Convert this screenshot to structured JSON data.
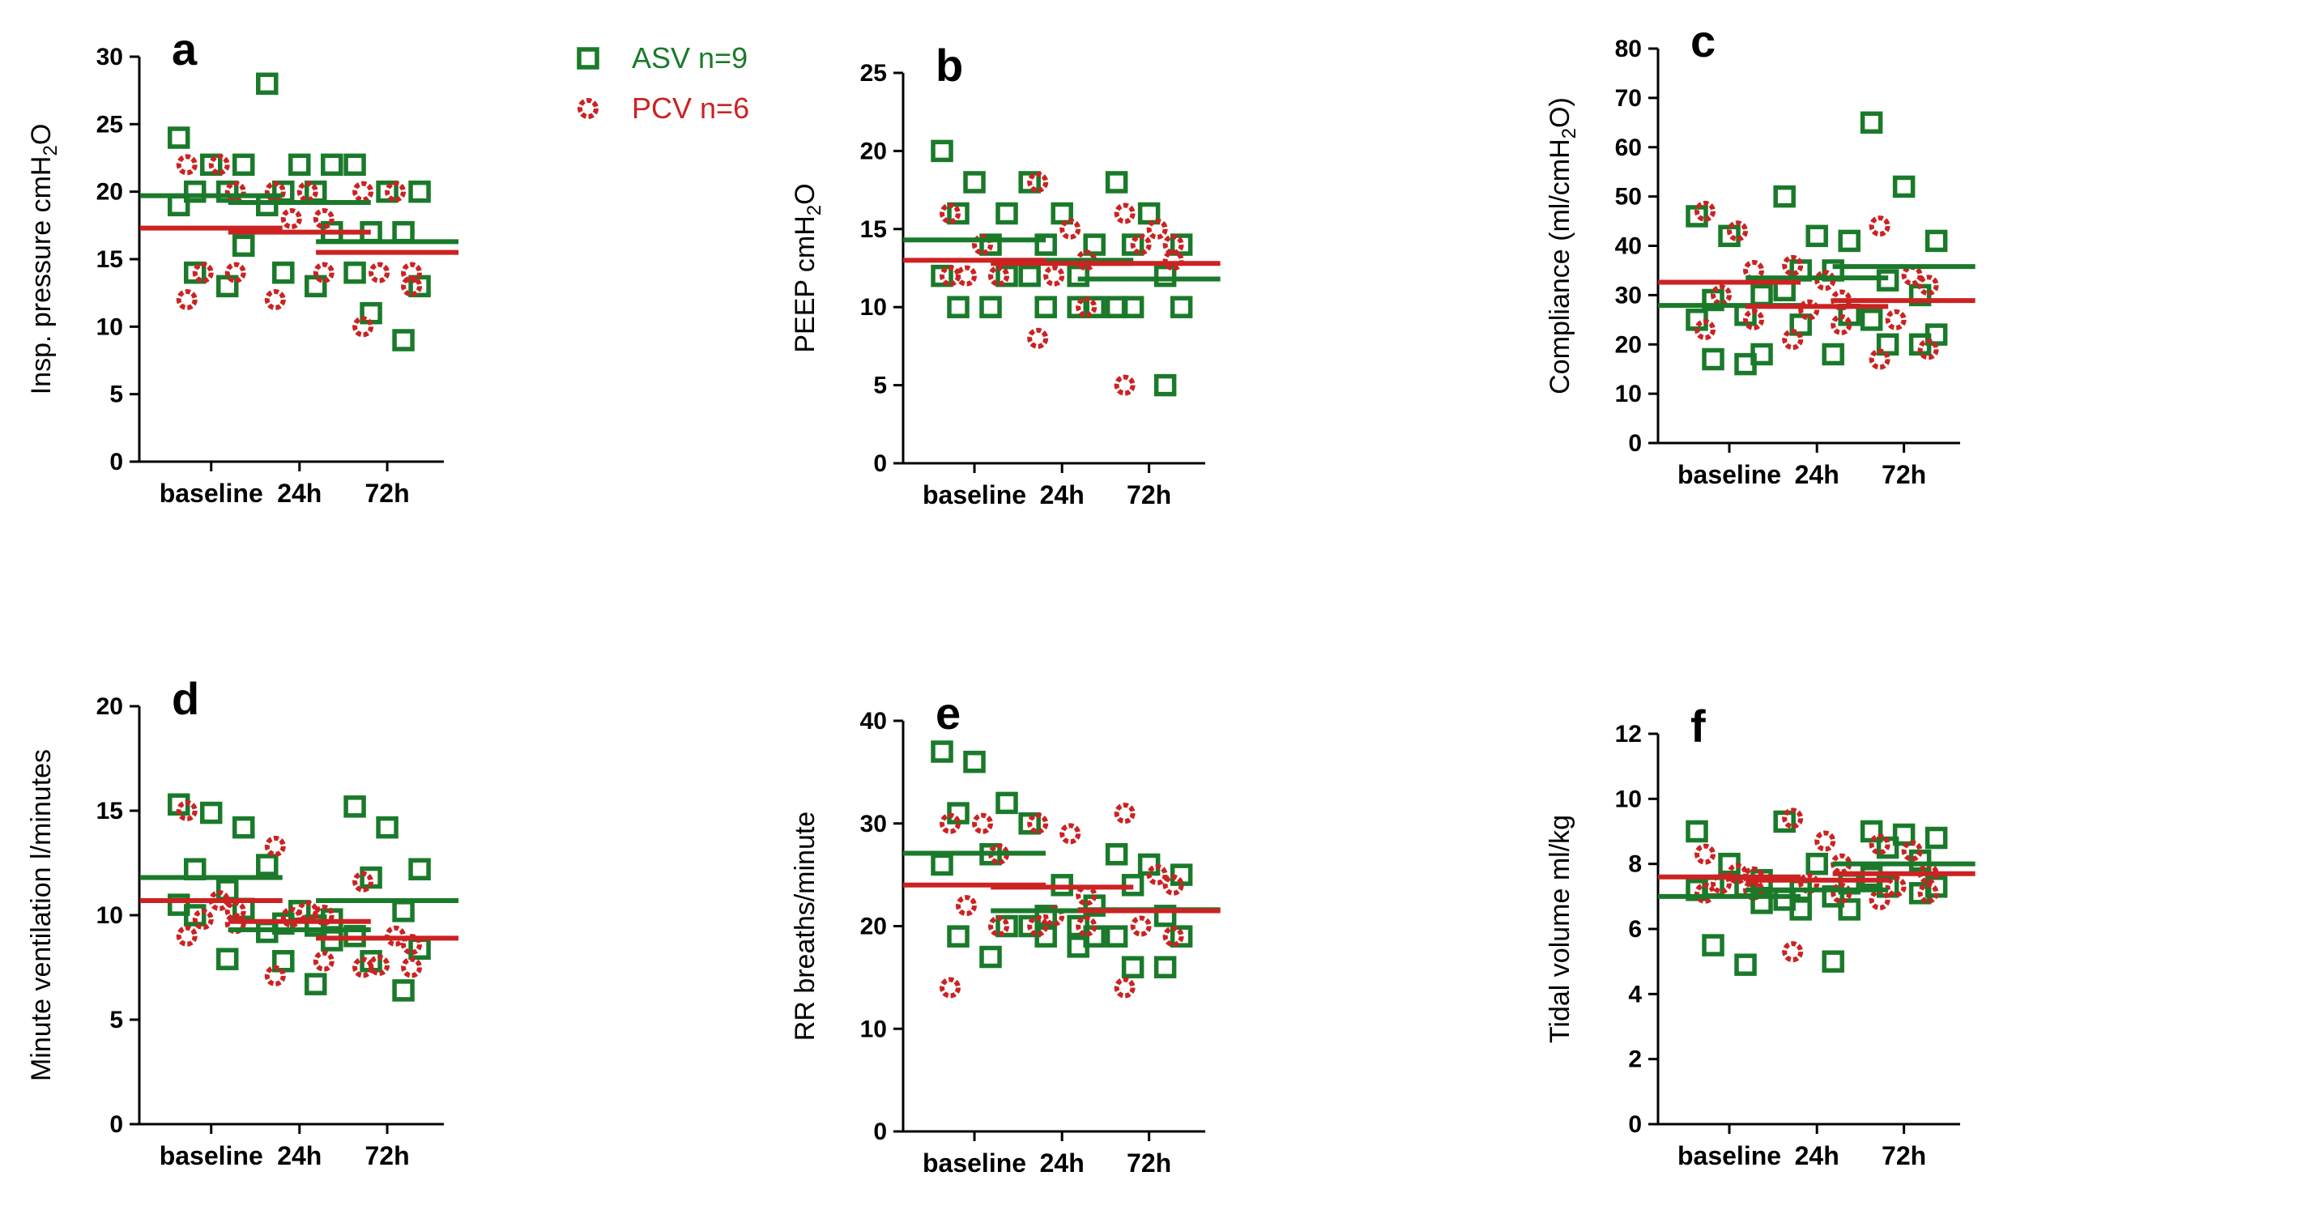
{
  "colors": {
    "asv": "#1a7a2a",
    "pcv": "#cc2222",
    "axis": "#000000"
  },
  "legend": [
    {
      "key": "asv",
      "label": "ASV n=9",
      "marker": "square"
    },
    {
      "key": "pcv",
      "label": "PCV n=6",
      "marker": "circle"
    }
  ],
  "chart_data": [
    {
      "id": "a",
      "type": "scatter",
      "letter": "a",
      "ylabel": "Insp. pressure cmH2O",
      "ylim": [
        0,
        30
      ],
      "yticks": [
        0,
        5,
        10,
        15,
        20,
        25,
        30
      ],
      "categories": [
        "baseline",
        "24h",
        "72h"
      ],
      "series": [
        {
          "name": "ASV",
          "marker": "square",
          "means": [
            19.7,
            19.2,
            16.3
          ],
          "points": [
            [
              24,
              22,
              22,
              20,
              20,
              19,
              16,
              14,
              13
            ],
            [
              28,
              22,
              22,
              20,
              20,
              19,
              17,
              14,
              13
            ],
            [
              22,
              20,
              20,
              17,
              17,
              14,
              13,
              11,
              9
            ]
          ]
        },
        {
          "name": "PCV",
          "marker": "circle",
          "means": [
            17.3,
            17.0,
            15.5
          ],
          "points": [
            [
              22,
              22,
              20,
              14,
              14,
              12
            ],
            [
              20,
              20,
              18,
              18,
              14,
              12
            ],
            [
              20,
              20,
              14,
              14,
              13,
              10
            ]
          ]
        }
      ]
    },
    {
      "id": "b",
      "type": "scatter",
      "letter": "b",
      "ylabel": "PEEP cmH2O",
      "ylim": [
        0,
        25
      ],
      "yticks": [
        0,
        5,
        10,
        15,
        20,
        25
      ],
      "categories": [
        "baseline",
        "24h",
        "72h"
      ],
      "series": [
        {
          "name": "ASV",
          "marker": "square",
          "means": [
            14.3,
            13.0,
            11.8
          ],
          "points": [
            [
              20,
              18,
              16,
              16,
              14,
              12,
              12,
              10,
              10
            ],
            [
              18,
              16,
              14,
              14,
              12,
              12,
              10,
              10,
              10
            ],
            [
              18,
              16,
              14,
              14,
              12,
              10,
              10,
              10,
              5
            ]
          ]
        },
        {
          "name": "PCV",
          "marker": "circle",
          "means": [
            13.0,
            12.8,
            12.8
          ],
          "points": [
            [
              16,
              14,
              12,
              12,
              12,
              12
            ],
            [
              18,
              15,
              13,
              12,
              10,
              8
            ],
            [
              16,
              15,
              14,
              14,
              13,
              5
            ]
          ]
        }
      ]
    },
    {
      "id": "c",
      "type": "scatter",
      "letter": "c",
      "ylabel": "Compliance (ml/cmH2O)",
      "ylim": [
        0,
        80
      ],
      "yticks": [
        0,
        10,
        20,
        30,
        40,
        50,
        60,
        70,
        80
      ],
      "categories": [
        "baseline",
        "24h",
        "72h"
      ],
      "series": [
        {
          "name": "ASV",
          "marker": "square",
          "means": [
            27.9,
            33.5,
            35.8
          ],
          "points": [
            [
              46,
              42,
              30,
              29,
              26,
              25,
              18,
              17,
              16
            ],
            [
              50,
              42,
              41,
              35,
              35,
              31,
              26,
              24,
              18
            ],
            [
              65,
              52,
              41,
              33,
              30,
              25,
              22,
              20,
              20
            ]
          ]
        },
        {
          "name": "PCV",
          "marker": "circle",
          "means": [
            32.6,
            27.7,
            28.9
          ],
          "points": [
            [
              47,
              43,
              35,
              30,
              25,
              23
            ],
            [
              36,
              33,
              29,
              27,
              24,
              21
            ],
            [
              44,
              34,
              32,
              25,
              19,
              17
            ]
          ]
        }
      ]
    },
    {
      "id": "d",
      "type": "scatter",
      "letter": "d",
      "ylabel": "Minute ventilation l/minutes",
      "ylim": [
        0,
        20
      ],
      "yticks": [
        0,
        5,
        10,
        15,
        20
      ],
      "categories": [
        "baseline",
        "24h",
        "72h"
      ],
      "series": [
        {
          "name": "ASV",
          "marker": "square",
          "means": [
            11.8,
            9.3,
            10.7
          ],
          "points": [
            [
              15.3,
              14.9,
              14.2,
              12.2,
              11.2,
              10.5,
              10.3,
              10.0,
              7.9
            ],
            [
              12.4,
              10.2,
              9.8,
              9.6,
              9.5,
              9.2,
              8.8,
              7.8,
              6.7
            ],
            [
              15.2,
              14.2,
              12.2,
              11.8,
              10.2,
              9.0,
              8.4,
              7.8,
              6.4
            ]
          ]
        },
        {
          "name": "PCV",
          "marker": "circle",
          "means": [
            10.7,
            9.7,
            8.9
          ],
          "points": [
            [
              15.0,
              10.7,
              10.2,
              9.8,
              9.6,
              9.0
            ],
            [
              13.3,
              10.2,
              10.0,
              9.9,
              7.8,
              7.1
            ],
            [
              11.6,
              9.0,
              8.6,
              7.6,
              7.5,
              7.5
            ]
          ]
        }
      ]
    },
    {
      "id": "e",
      "type": "scatter",
      "letter": "e",
      "ylabel": "RR breaths/minute",
      "ylim": [
        0,
        40
      ],
      "yticks": [
        0,
        10,
        20,
        30,
        40
      ],
      "categories": [
        "baseline",
        "24h",
        "72h"
      ],
      "series": [
        {
          "name": "ASV",
          "marker": "square",
          "means": [
            27.1,
            21.5,
            21.6
          ],
          "points": [
            [
              37,
              36,
              32,
              31,
              27,
              26,
              20,
              19,
              17
            ],
            [
              30,
              24,
              22,
              21,
              20,
              20,
              19,
              19,
              18
            ],
            [
              27,
              26,
              25,
              24,
              21,
              19,
              19,
              16,
              16
            ]
          ]
        },
        {
          "name": "PCV",
          "marker": "circle",
          "means": [
            24.0,
            23.8,
            21.5
          ],
          "points": [
            [
              30,
              30,
              27,
              22,
              20,
              14
            ],
            [
              30,
              29,
              23,
              21,
              20,
              20
            ],
            [
              31,
              25,
              24,
              20,
              19,
              14
            ]
          ]
        }
      ]
    },
    {
      "id": "f",
      "type": "scatter",
      "letter": "f",
      "ylabel": "Tidal volume ml/kg",
      "ylim": [
        0,
        12
      ],
      "yticks": [
        0,
        2,
        4,
        6,
        8,
        10,
        12
      ],
      "categories": [
        "baseline",
        "24h",
        "72h"
      ],
      "series": [
        {
          "name": "ASV",
          "marker": "square",
          "means": [
            7.0,
            7.2,
            8.0
          ],
          "points": [
            [
              9.0,
              8.0,
              7.5,
              7.3,
              7.3,
              7.2,
              6.8,
              5.5,
              4.9
            ],
            [
              9.3,
              8.0,
              7.4,
              7.2,
              7.0,
              6.9,
              6.6,
              6.6,
              5.0
            ],
            [
              9.0,
              8.9,
              8.8,
              8.5,
              8.1,
              7.6,
              7.3,
              7.3,
              7.1
            ]
          ]
        },
        {
          "name": "PCV",
          "marker": "circle",
          "means": [
            7.6,
            7.5,
            7.7
          ],
          "points": [
            [
              8.3,
              7.7,
              7.6,
              7.4,
              7.2,
              7.1
            ],
            [
              9.4,
              8.7,
              8.0,
              7.4,
              7.1,
              5.3
            ],
            [
              8.6,
              8.4,
              7.7,
              7.3,
              7.1,
              6.9
            ]
          ]
        }
      ]
    }
  ]
}
